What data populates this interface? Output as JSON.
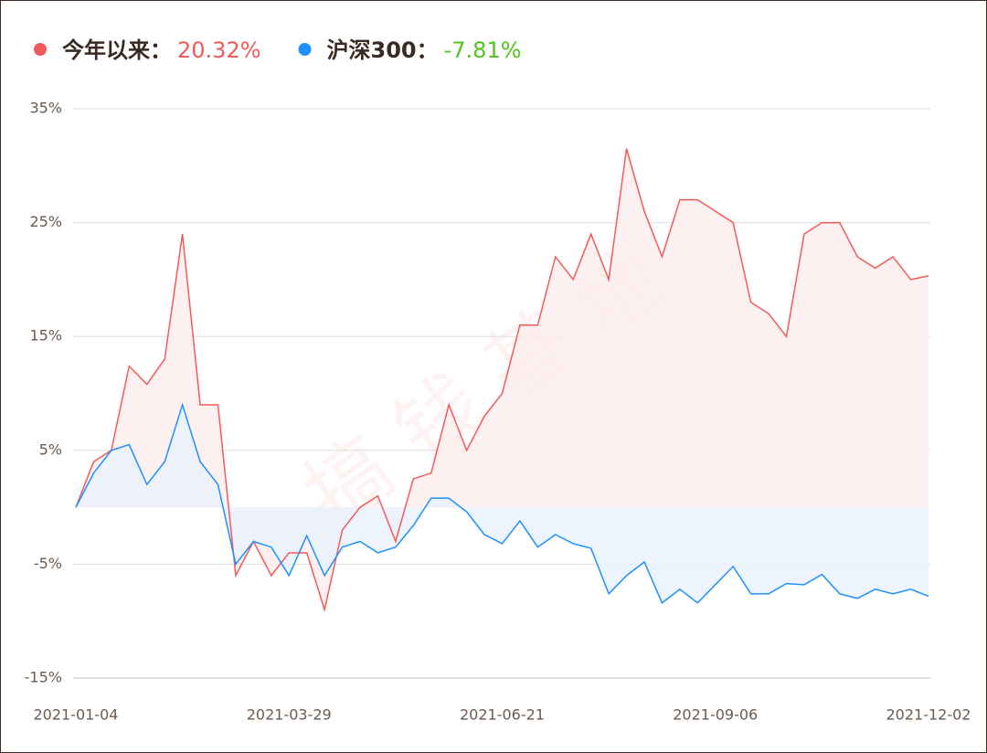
{
  "chart_data": {
    "type": "line",
    "watermark": "搞钱基地",
    "categories": [
      "2021-01-04",
      null,
      null,
      null,
      null,
      null,
      null,
      null,
      null,
      null,
      null,
      null,
      "2021-03-29",
      null,
      null,
      null,
      null,
      null,
      null,
      null,
      null,
      null,
      null,
      null,
      "2021-06-21",
      null,
      null,
      null,
      null,
      null,
      null,
      null,
      null,
      null,
      null,
      null,
      "2021-09-06",
      null,
      null,
      null,
      null,
      null,
      null,
      null,
      null,
      null,
      null,
      null,
      "2021-12-02"
    ],
    "series": [
      {
        "name": "今年以来：",
        "legend_value": "20.32%",
        "legend_value_color": "#f25a5a",
        "color": "#f25a5a",
        "fill": "#fdecec",
        "values": [
          0,
          4,
          5,
          12.4,
          10.8,
          13,
          24,
          9,
          9,
          -6,
          -3,
          -6,
          -4,
          -4,
          -9,
          -2,
          0,
          1,
          -3,
          2.5,
          3,
          9,
          5,
          8,
          10,
          16,
          16,
          22,
          20,
          24,
          20,
          31.5,
          26,
          22,
          27,
          27,
          26,
          25,
          18,
          17,
          15,
          24,
          25,
          25,
          22,
          21,
          22,
          20,
          20.32
        ]
      },
      {
        "name": "沪深300：",
        "legend_value": "-7.81%",
        "legend_value_color": "#52c41a",
        "color": "#1e90ff",
        "fill": "#e8f1fc",
        "values": [
          0,
          3,
          5,
          5.5,
          2,
          4,
          9,
          4,
          2,
          -5,
          -3,
          -3.5,
          -6,
          -2.5,
          -6,
          -3.5,
          -3,
          -4,
          -3.5,
          -1.6,
          0.8,
          0.8,
          -0.4,
          -2.4,
          -3.2,
          -1.2,
          -3.5,
          -2.4,
          -3.2,
          -3.6,
          -7.6,
          -6,
          -4.8,
          -8.4,
          -7.2,
          -8.4,
          -6.8,
          -5.2,
          -7.6,
          -7.6,
          -6.7,
          -6.8,
          -5.9,
          -7.6,
          -8,
          -7.2,
          -7.6,
          -7.2,
          -7.81
        ]
      }
    ],
    "ylim": [
      -15,
      35
    ],
    "yticks": [
      {
        "value": 35,
        "label": "35%"
      },
      {
        "value": 25,
        "label": "25%"
      },
      {
        "value": 15,
        "label": "15%"
      },
      {
        "value": 5,
        "label": "5%"
      },
      {
        "value": -5,
        "label": "-5%"
      },
      {
        "value": -15,
        "label": "-15%"
      }
    ],
    "grid": true
  }
}
